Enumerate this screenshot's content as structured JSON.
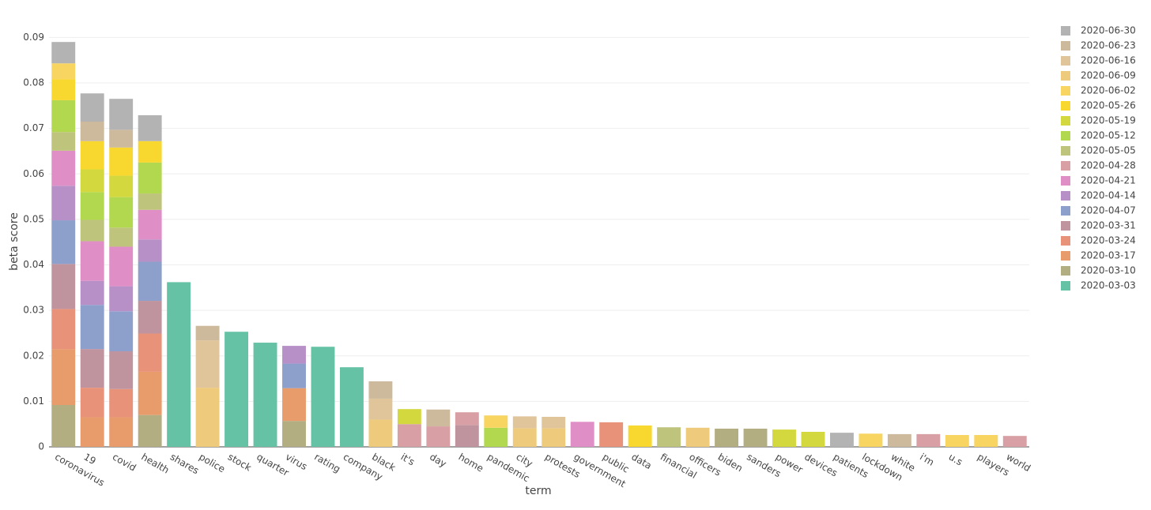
{
  "chart_data": {
    "type": "stacked_bar",
    "x_label": "term",
    "y_label": "beta score",
    "categories": [
      "coronavirus",
      "19",
      "covid",
      "health",
      "shares",
      "police",
      "stock",
      "quarter",
      "virus",
      "rating",
      "company",
      "black",
      "it's",
      "day",
      "home",
      "pandemic",
      "city",
      "protests",
      "government",
      "public",
      "data",
      "financial",
      "officers",
      "biden",
      "sanders",
      "power",
      "devices",
      "patients",
      "lockdown",
      "white",
      "i'm",
      "u.s",
      "players",
      "world"
    ],
    "ylim": [
      0,
      0.0925
    ],
    "yticks": [
      0,
      0.01,
      0.02,
      0.03,
      0.04,
      0.05,
      0.06,
      0.07,
      0.08,
      0.09
    ],
    "grid": true,
    "series": [
      {
        "name": "2020-03-03",
        "color": "#66c2a5",
        "values": [
          null,
          null,
          null,
          null,
          0.0362,
          null,
          0.0253,
          0.0229,
          null,
          0.022,
          0.0175,
          null,
          null,
          null,
          null,
          null,
          null,
          null,
          null,
          null,
          null,
          null,
          null,
          null,
          null,
          null,
          null,
          null,
          null,
          null,
          null,
          null,
          null,
          null
        ]
      },
      {
        "name": "2020-03-10",
        "color": "#b3ae82",
        "values": [
          0.0092,
          null,
          null,
          0.007,
          null,
          null,
          null,
          null,
          0.0057,
          null,
          null,
          null,
          null,
          null,
          null,
          null,
          null,
          null,
          null,
          null,
          null,
          null,
          null,
          0.004,
          0.004,
          null,
          null,
          null,
          null,
          null,
          null,
          null,
          null,
          null
        ]
      },
      {
        "name": "2020-03-17",
        "color": "#e89b6b",
        "values": [
          0.0123,
          0.0065,
          0.0065,
          0.0095,
          null,
          null,
          null,
          null,
          0.0072,
          null,
          null,
          null,
          null,
          null,
          null,
          null,
          null,
          null,
          null,
          null,
          null,
          null,
          null,
          null,
          null,
          null,
          null,
          null,
          null,
          null,
          null,
          null,
          null,
          null
        ]
      },
      {
        "name": "2020-03-24",
        "color": "#e8927a",
        "values": [
          0.0088,
          0.0065,
          0.0062,
          0.0084,
          null,
          null,
          null,
          null,
          null,
          null,
          null,
          null,
          null,
          null,
          null,
          null,
          null,
          null,
          null,
          0.0054,
          null,
          null,
          null,
          null,
          null,
          null,
          null,
          null,
          null,
          null,
          null,
          null,
          null,
          null
        ]
      },
      {
        "name": "2020-03-31",
        "color": "#c0949e",
        "values": [
          0.0099,
          0.0085,
          0.0083,
          0.0072,
          null,
          null,
          null,
          null,
          null,
          null,
          null,
          null,
          null,
          null,
          0.0048,
          null,
          null,
          null,
          null,
          null,
          null,
          null,
          null,
          null,
          null,
          null,
          null,
          null,
          null,
          null,
          null,
          null,
          null,
          null
        ]
      },
      {
        "name": "2020-04-07",
        "color": "#8da0cb",
        "values": [
          0.0096,
          0.0097,
          0.0088,
          0.0086,
          null,
          null,
          null,
          null,
          0.0054,
          null,
          null,
          null,
          null,
          null,
          null,
          null,
          null,
          null,
          null,
          null,
          null,
          null,
          null,
          null,
          null,
          null,
          null,
          null,
          null,
          null,
          null,
          null,
          null,
          null
        ]
      },
      {
        "name": "2020-04-14",
        "color": "#b890c8",
        "values": [
          0.0076,
          0.0053,
          0.0055,
          0.0049,
          null,
          null,
          null,
          null,
          0.0039,
          null,
          null,
          null,
          null,
          null,
          null,
          null,
          null,
          null,
          null,
          null,
          null,
          null,
          null,
          null,
          null,
          null,
          null,
          null,
          null,
          null,
          null,
          null,
          null,
          null
        ]
      },
      {
        "name": "2020-04-21",
        "color": "#e08ec6",
        "values": [
          0.0077,
          0.0087,
          0.0087,
          0.0065,
          null,
          null,
          null,
          null,
          null,
          null,
          null,
          null,
          null,
          null,
          null,
          null,
          null,
          null,
          0.0055,
          null,
          null,
          null,
          null,
          null,
          null,
          null,
          null,
          null,
          null,
          null,
          null,
          null,
          null,
          null
        ]
      },
      {
        "name": "2020-04-28",
        "color": "#d8a0a4",
        "values": [
          null,
          null,
          null,
          null,
          null,
          null,
          null,
          null,
          null,
          null,
          null,
          null,
          0.005,
          0.0045,
          0.0028,
          null,
          null,
          null,
          null,
          null,
          null,
          null,
          null,
          null,
          null,
          null,
          null,
          null,
          null,
          null,
          0.0028,
          null,
          null,
          0.0024
        ]
      },
      {
        "name": "2020-05-05",
        "color": "#bec47c",
        "values": [
          0.0041,
          0.0047,
          0.0042,
          0.0036,
          null,
          null,
          null,
          null,
          null,
          null,
          null,
          null,
          null,
          null,
          null,
          null,
          null,
          null,
          null,
          null,
          null,
          0.0043,
          null,
          null,
          null,
          null,
          null,
          null,
          null,
          null,
          null,
          null,
          null,
          null
        ]
      },
      {
        "name": "2020-05-12",
        "color": "#b1d84f",
        "values": [
          0.007,
          0.0061,
          0.0067,
          0.0068,
          null,
          null,
          null,
          null,
          null,
          null,
          null,
          null,
          null,
          null,
          null,
          0.0042,
          null,
          null,
          null,
          null,
          null,
          null,
          null,
          null,
          null,
          null,
          null,
          null,
          null,
          null,
          null,
          null,
          null,
          null
        ]
      },
      {
        "name": "2020-05-19",
        "color": "#d3d83f",
        "values": [
          null,
          0.005,
          0.0047,
          null,
          null,
          null,
          null,
          null,
          null,
          null,
          null,
          null,
          0.0033,
          null,
          null,
          null,
          null,
          null,
          null,
          null,
          null,
          null,
          null,
          null,
          null,
          0.0038,
          0.0033,
          null,
          null,
          null,
          null,
          null,
          null,
          null
        ]
      },
      {
        "name": "2020-05-26",
        "color": "#f8d82e",
        "values": [
          0.0046,
          0.0062,
          0.0062,
          0.0047,
          null,
          null,
          null,
          null,
          null,
          null,
          null,
          null,
          null,
          null,
          null,
          null,
          null,
          null,
          null,
          null,
          0.0047,
          null,
          null,
          null,
          null,
          null,
          null,
          null,
          null,
          null,
          null,
          null,
          null,
          null
        ]
      },
      {
        "name": "2020-06-02",
        "color": "#f8d460",
        "values": [
          0.0035,
          null,
          null,
          null,
          null,
          null,
          null,
          null,
          null,
          null,
          null,
          null,
          null,
          null,
          null,
          0.0027,
          null,
          null,
          null,
          null,
          null,
          null,
          null,
          null,
          null,
          null,
          null,
          null,
          0.0029,
          null,
          null,
          0.0026,
          0.0026,
          null
        ]
      },
      {
        "name": "2020-06-09",
        "color": "#eecb7c",
        "values": [
          null,
          null,
          null,
          null,
          null,
          0.013,
          null,
          null,
          null,
          null,
          null,
          0.006,
          null,
          null,
          null,
          null,
          0.0041,
          0.0041,
          null,
          null,
          null,
          null,
          0.0042,
          null,
          null,
          null,
          null,
          null,
          null,
          null,
          null,
          null,
          null,
          null
        ]
      },
      {
        "name": "2020-06-16",
        "color": "#e0c49a",
        "values": [
          null,
          null,
          null,
          null,
          null,
          0.0104,
          null,
          null,
          null,
          null,
          null,
          0.0046,
          null,
          null,
          null,
          null,
          0.0026,
          0.0025,
          null,
          null,
          null,
          null,
          null,
          null,
          null,
          null,
          null,
          null,
          null,
          null,
          null,
          null,
          null,
          null
        ]
      },
      {
        "name": "2020-06-23",
        "color": "#cdb99c",
        "values": [
          null,
          0.0043,
          0.0039,
          null,
          null,
          0.0032,
          null,
          null,
          null,
          null,
          null,
          0.0038,
          null,
          0.0037,
          null,
          null,
          null,
          null,
          null,
          null,
          null,
          null,
          null,
          null,
          null,
          null,
          null,
          null,
          null,
          0.0028,
          null,
          null,
          null,
          null
        ]
      },
      {
        "name": "2020-06-30",
        "color": "#b3b3b3",
        "values": [
          0.0047,
          0.0062,
          0.0068,
          0.0057,
          null,
          null,
          null,
          null,
          null,
          null,
          null,
          null,
          null,
          null,
          null,
          null,
          null,
          null,
          null,
          null,
          null,
          null,
          null,
          null,
          null,
          null,
          null,
          0.0031,
          null,
          null,
          null,
          null,
          null,
          null
        ]
      }
    ]
  }
}
